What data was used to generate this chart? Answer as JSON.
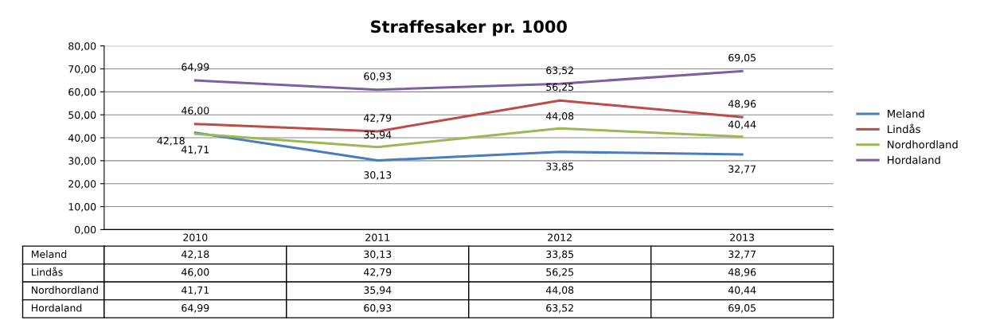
{
  "chart_data": {
    "type": "line",
    "title": "Straffesaker pr. 1000",
    "categories": [
      "2010",
      "2011",
      "2012",
      "2013"
    ],
    "series": [
      {
        "name": "Meland",
        "color": "#4a7ebb",
        "values": [
          42.18,
          30.13,
          33.85,
          32.77
        ],
        "value_labels": [
          "42,18",
          "30,13",
          "33,85",
          "32,77"
        ]
      },
      {
        "name": "Lindås",
        "color": "#be4b48",
        "values": [
          46.0,
          42.79,
          56.25,
          48.96
        ],
        "value_labels": [
          "46,00",
          "42,79",
          "56,25",
          "48,96"
        ]
      },
      {
        "name": "Nordhordland",
        "color": "#98b954",
        "values": [
          41.71,
          35.94,
          44.08,
          40.44
        ],
        "value_labels": [
          "41,71",
          "35,94",
          "44,08",
          "40,44"
        ]
      },
      {
        "name": "Hordaland",
        "color": "#7d60a0",
        "values": [
          64.99,
          60.93,
          63.52,
          69.05
        ],
        "value_labels": [
          "64,99",
          "60,93",
          "63,52",
          "69,05"
        ]
      }
    ],
    "ylim": [
      0,
      80
    ],
    "yticks": [
      {
        "value": 0,
        "label": "0,00"
      },
      {
        "value": 10,
        "label": "10,00"
      },
      {
        "value": 20,
        "label": "20,00"
      },
      {
        "value": 30,
        "label": "30,00"
      },
      {
        "value": 40,
        "label": "40,00"
      },
      {
        "value": 50,
        "label": "50,00"
      },
      {
        "value": 60,
        "label": "60,00"
      },
      {
        "value": 70,
        "label": "70,00"
      },
      {
        "value": 80,
        "label": "80,00"
      }
    ],
    "grid": "y",
    "legend": "right",
    "marker": "none",
    "line_style": "solid"
  }
}
